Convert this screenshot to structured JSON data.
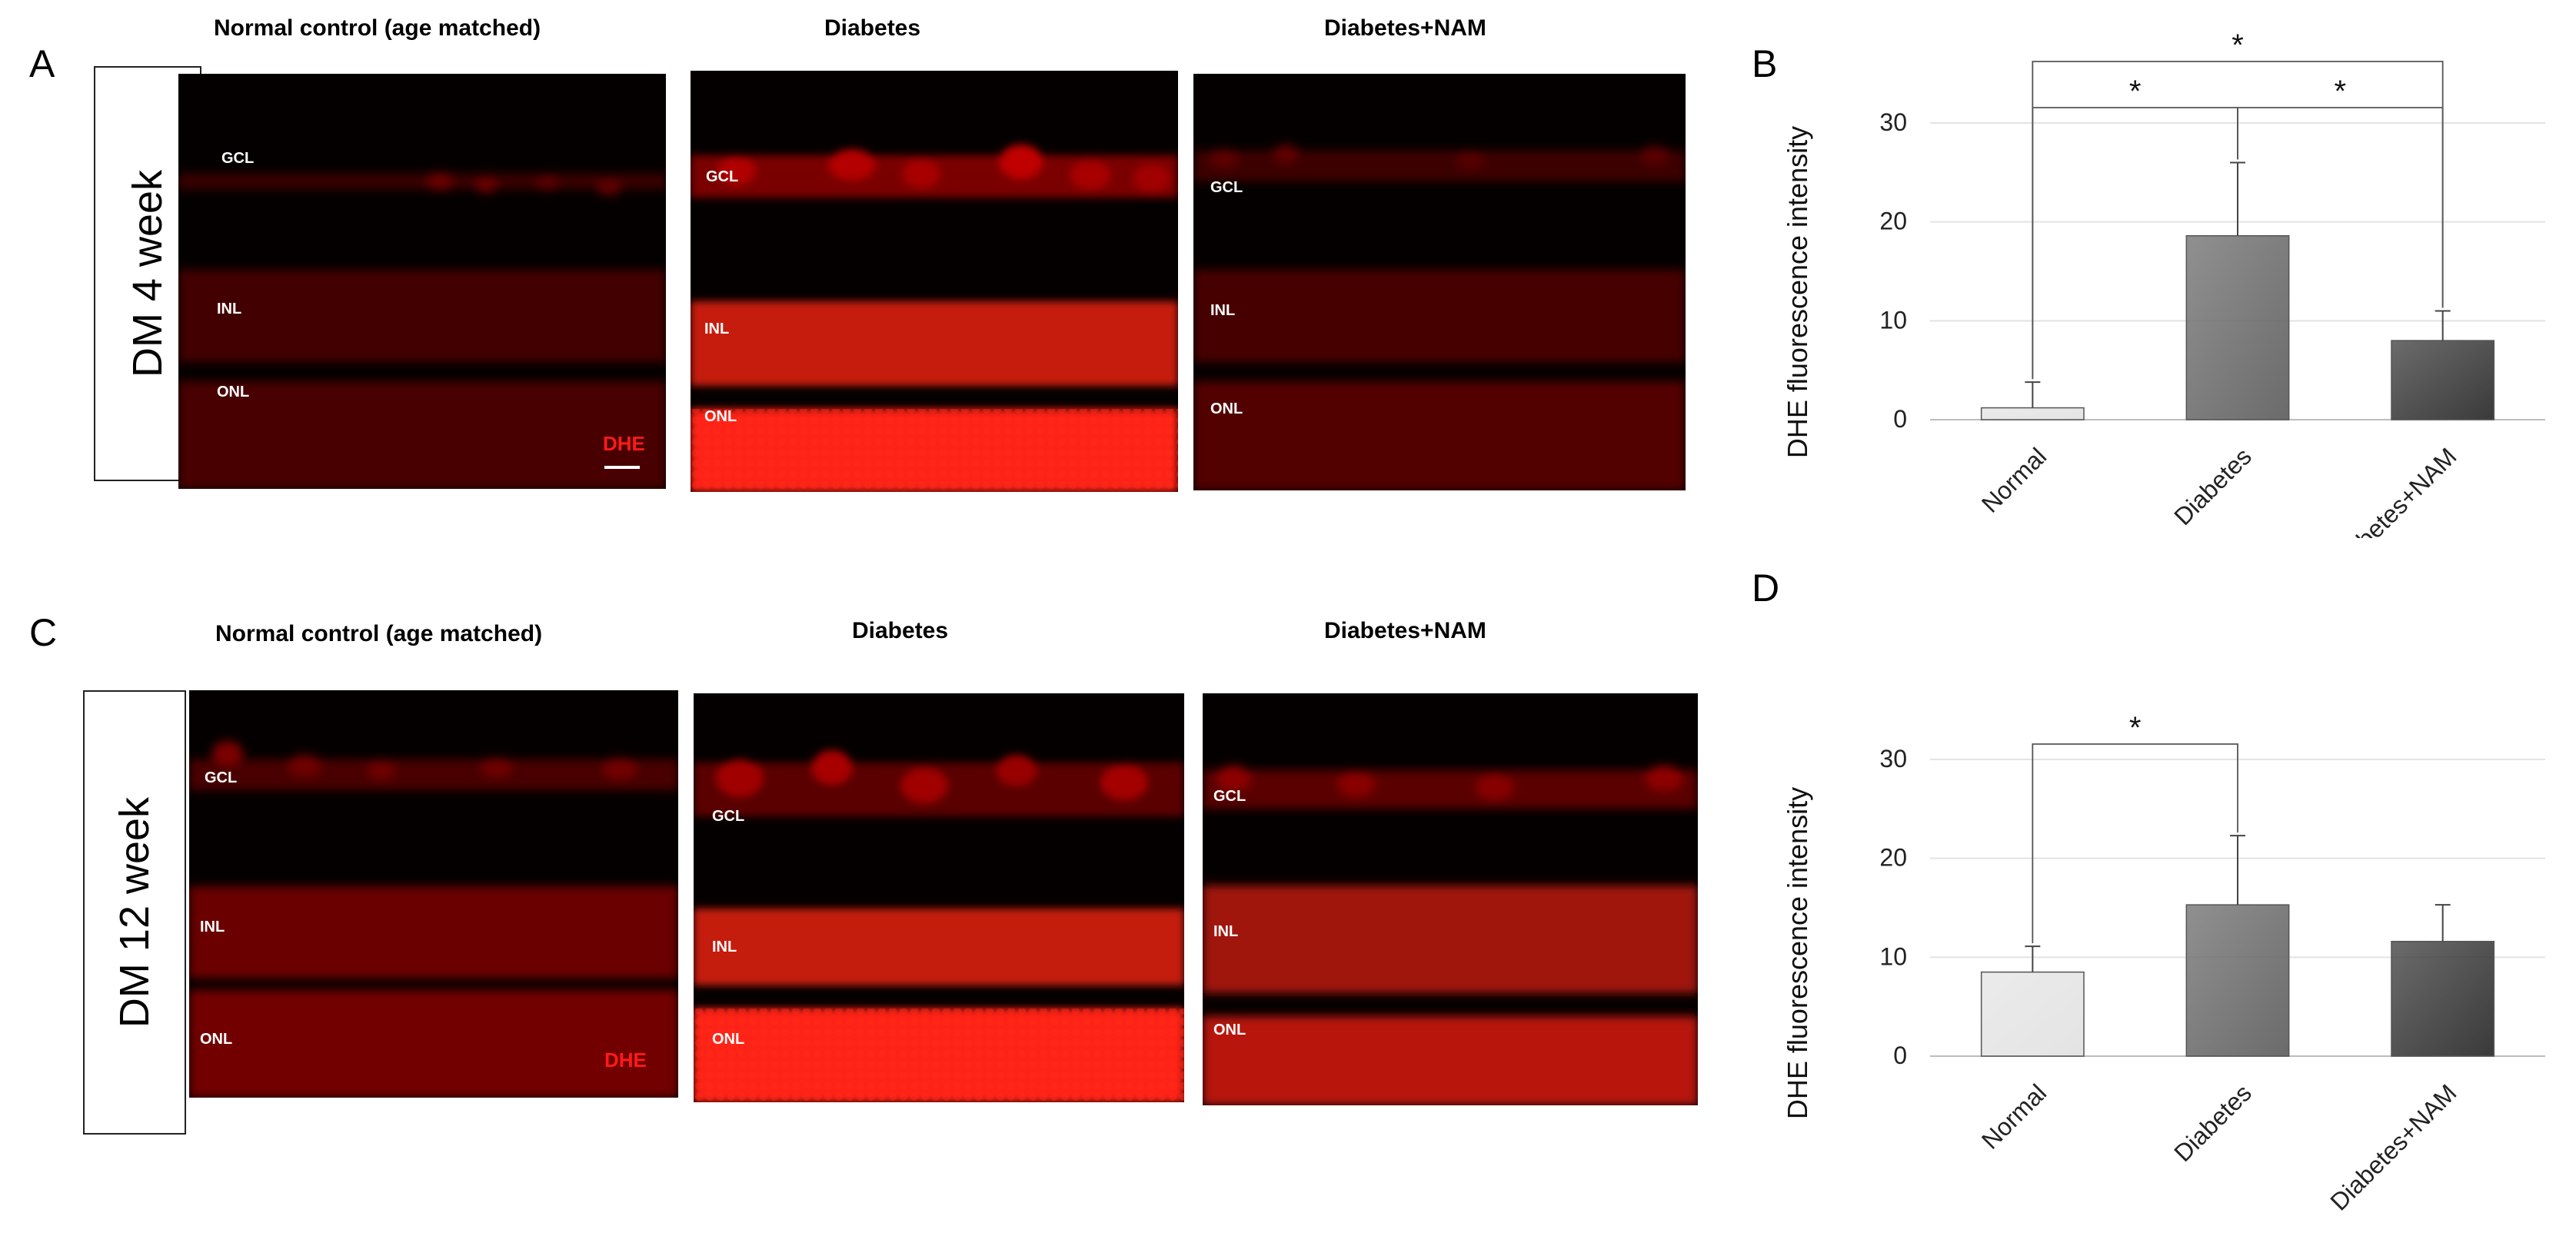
{
  "panels": {
    "A": {
      "letter": "A",
      "row_label": "DM 4 week",
      "columns": [
        "Normal control (age matched)",
        "Diabetes",
        "Diabetes+NAM"
      ],
      "images": [
        {
          "layers": [
            "GCL",
            "INL",
            "ONL"
          ],
          "stain": "DHE",
          "intensity": "low"
        },
        {
          "layers": [
            "GCL",
            "INL",
            "ONL"
          ],
          "stain": "",
          "intensity": "high"
        },
        {
          "layers": [
            "GCL",
            "INL",
            "ONL"
          ],
          "stain": "",
          "intensity": "low"
        }
      ]
    },
    "C": {
      "letter": "C",
      "row_label": "DM 12 week",
      "columns": [
        "Normal control (age matched)",
        "Diabetes",
        "Diabetes+NAM"
      ],
      "images": [
        {
          "layers": [
            "GCL",
            "INL",
            "ONL"
          ],
          "stain": "DHE",
          "intensity": "medium"
        },
        {
          "layers": [
            "GCL",
            "INL",
            "ONL"
          ],
          "stain": "",
          "intensity": "high"
        },
        {
          "layers": [
            "GCL",
            "INL",
            "ONL"
          ],
          "stain": "",
          "intensity": "medium"
        }
      ]
    },
    "B": {
      "letter": "B"
    },
    "D": {
      "letter": "D"
    }
  },
  "chart_data": [
    {
      "panel": "B",
      "type": "bar",
      "categories": [
        "Normal",
        "Diabetes",
        "Diabetes+NAM"
      ],
      "values": [
        1.2,
        18.6,
        8.0
      ],
      "errors": [
        2.6,
        7.4,
        3.0
      ],
      "ylabel": "DHE fluorescence intensity",
      "xlabel": "",
      "ylim": [
        0,
        30
      ],
      "yticks": [
        0,
        10,
        20,
        30
      ],
      "grid": true,
      "bar_colors": [
        "#e4e4e4",
        "#6b6b6b",
        "#3a3a3a"
      ],
      "significance": [
        {
          "from": 0,
          "to": 1,
          "label": "*"
        },
        {
          "from": 1,
          "to": 2,
          "label": "*"
        },
        {
          "from": 0,
          "to": 2,
          "label": "*"
        }
      ]
    },
    {
      "panel": "D",
      "type": "bar",
      "categories": [
        "Normal",
        "Diabetes",
        "Diabetes+NAM"
      ],
      "values": [
        8.5,
        15.3,
        11.6
      ],
      "errors": [
        2.6,
        7.0,
        3.7
      ],
      "ylabel": "DHE fluorescence intensity",
      "xlabel": "",
      "ylim": [
        0,
        30
      ],
      "yticks": [
        0,
        10,
        20,
        30
      ],
      "grid": true,
      "bar_colors": [
        "#e4e4e4",
        "#6b6b6b",
        "#3a3a3a"
      ],
      "significance": [
        {
          "from": 0,
          "to": 1,
          "label": "*"
        }
      ]
    }
  ]
}
